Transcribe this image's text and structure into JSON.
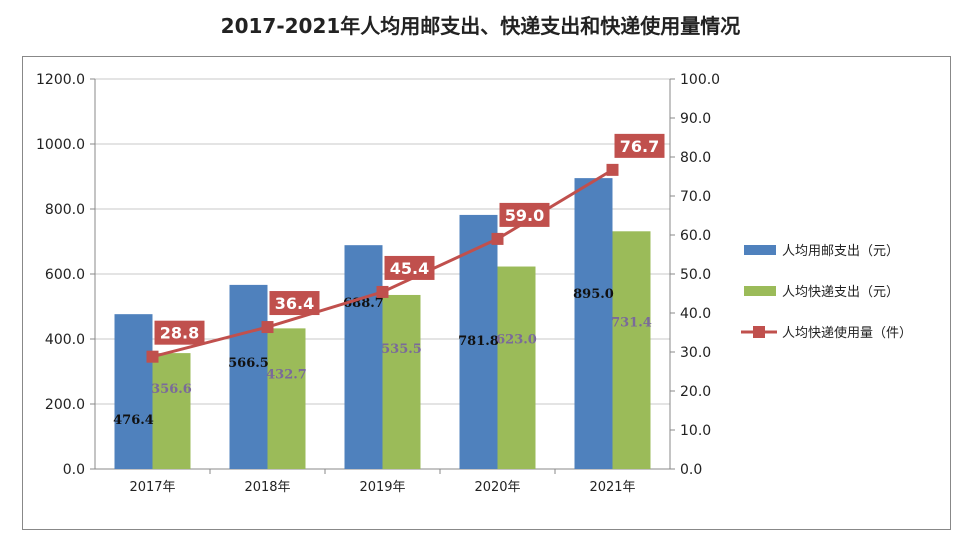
{
  "chart_data": {
    "type": "bar+line",
    "title": "2017-2021年人均用邮支出、快递支出和快递使用量情况",
    "categories": [
      "2017年",
      "2018年",
      "2019年",
      "2020年",
      "2021年"
    ],
    "y_left": {
      "range": [
        0,
        1200
      ],
      "ticks": [
        "0.0",
        "200.0",
        "400.0",
        "600.0",
        "800.0",
        "1000.0",
        "1200.0"
      ]
    },
    "y_right": {
      "range": [
        0,
        100
      ],
      "ticks": [
        "0.0",
        "10.0",
        "20.0",
        "30.0",
        "40.0",
        "50.0",
        "60.0",
        "70.0",
        "80.0",
        "90.0",
        "100.0"
      ]
    },
    "grid": true,
    "legend_position": "right",
    "series": [
      {
        "name": "人均用邮支出（元）",
        "type": "bar",
        "axis": "left",
        "color": "#4f81bd",
        "values": [
          476.4,
          566.5,
          688.7,
          781.8,
          895.0
        ],
        "labels": [
          "476.4",
          "566.5",
          "688.7",
          "781.8",
          "895.0"
        ]
      },
      {
        "name": "人均快递支出（元）",
        "type": "bar",
        "axis": "left",
        "color": "#9bbb59",
        "values": [
          356.6,
          432.7,
          535.5,
          623.0,
          731.4
        ],
        "labels": [
          "356.6",
          "432.7",
          "535.5",
          "623.0",
          "731.4"
        ]
      },
      {
        "name": "人均快递使用量（件）",
        "type": "line",
        "axis": "right",
        "color": "#c0504d",
        "values": [
          28.8,
          36.4,
          45.4,
          59.0,
          76.7
        ],
        "labels": [
          "28.8",
          "36.4",
          "45.4",
          "59.0",
          "76.7"
        ]
      }
    ]
  }
}
